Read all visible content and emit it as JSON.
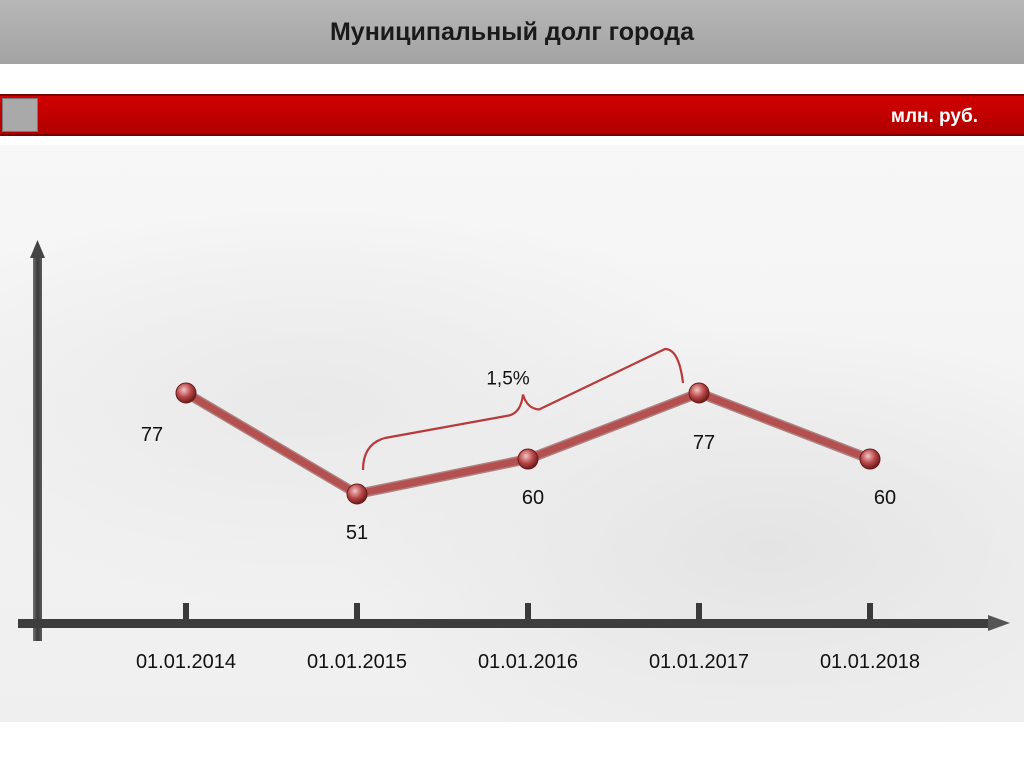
{
  "header": {
    "title": "Муниципальный долг города"
  },
  "unit_bar": {
    "unit": "млн. руб."
  },
  "colors": {
    "accent": "#c00000",
    "line": "#b45050",
    "axis": "#3d3d3d"
  },
  "chart_data": {
    "type": "line",
    "title": "Муниципальный долг города",
    "unit": "млн. руб.",
    "categories": [
      "01.01.2014",
      "01.01.2015",
      "01.01.2016",
      "01.01.2017",
      "01.01.2018"
    ],
    "series": [
      {
        "values": [
          77,
          51,
          60,
          77,
          60
        ]
      }
    ],
    "data_labels": [
      "77",
      "51",
      "60",
      "77",
      "60"
    ],
    "annotations": [
      {
        "text": "1,5%",
        "from": "01.01.2015",
        "to": "01.01.2017"
      }
    ],
    "grid": false
  }
}
